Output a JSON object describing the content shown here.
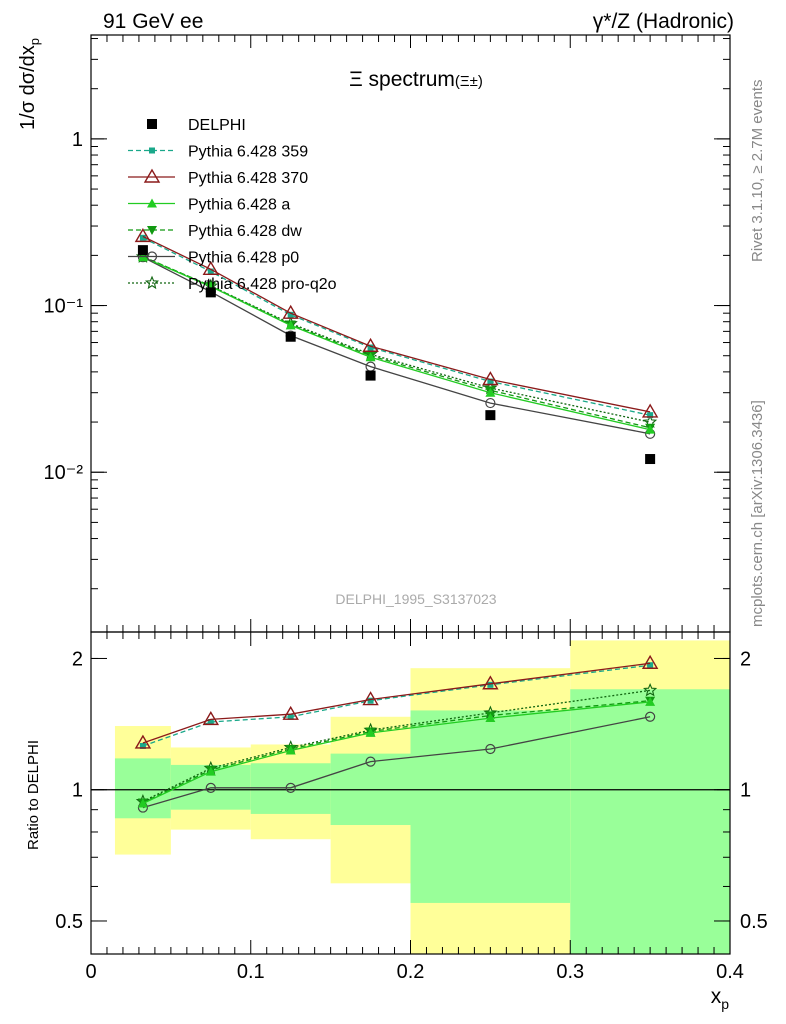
{
  "header": {
    "left": "91 GeV ee",
    "right": "γ*/Z (Hadronic)"
  },
  "side_text": {
    "rivet": "Rivet 3.1.10, ≥ 2.7M events",
    "mcplots": "mcplots.cern.ch [arXiv:1306.3436]"
  },
  "watermark": "DELPHI_1995_S3137023",
  "colors": {
    "delphi": "#000000",
    "p359": "#1aa88a",
    "p370": "#8b1a1a",
    "a": "#22cc22",
    "dw": "#119911",
    "p0": "#444444",
    "proq2o": "#116611",
    "band_yellow": "#ffff99",
    "band_green": "#99ff99"
  },
  "chart_data": [
    {
      "type": "scatter",
      "title": "Ξ spectrum",
      "title_suffix": "(Ξ±)",
      "ylabel": "1/σ dσ/dx_p",
      "ylog": true,
      "ylim": [
        0.0011,
        4.2
      ],
      "xlim": [
        0,
        0.4
      ],
      "yticks": [
        {
          "value": 1,
          "label": "1"
        },
        {
          "value": 0.1,
          "label": "10⁻¹"
        },
        {
          "value": 0.01,
          "label": "10⁻²"
        }
      ],
      "x": [
        0.0325,
        0.075,
        0.125,
        0.175,
        0.25,
        0.35
      ],
      "series": [
        {
          "key": "delphi",
          "name": "DELPHI",
          "marker": "square",
          "line": "none",
          "values": [
            0.215,
            0.12,
            0.065,
            0.038,
            0.022,
            0.012
          ]
        },
        {
          "key": "p359",
          "name": "Pythia 6.428 359",
          "marker": "small-square",
          "line": "dashed",
          "values": [
            0.255,
            0.16,
            0.088,
            0.056,
            0.035,
            0.022
          ]
        },
        {
          "key": "p370",
          "name": "Pythia 6.428 370",
          "marker": "open-triangle",
          "line": "solid",
          "values": [
            0.26,
            0.165,
            0.09,
            0.057,
            0.036,
            0.023
          ]
        },
        {
          "key": "a",
          "name": "Pythia 6.428 a",
          "marker": "triangle",
          "line": "solid",
          "values": [
            0.195,
            0.13,
            0.076,
            0.049,
            0.03,
            0.018
          ]
        },
        {
          "key": "dw",
          "name": "Pythia 6.428 dw",
          "marker": "triangle-down",
          "line": "dashed",
          "values": [
            0.197,
            0.131,
            0.077,
            0.05,
            0.031,
            0.0185
          ]
        },
        {
          "key": "p0",
          "name": "Pythia 6.428 p0",
          "marker": "open-circle",
          "line": "solid",
          "values": [
            0.195,
            0.121,
            0.066,
            0.043,
            0.026,
            0.017
          ]
        },
        {
          "key": "proq2o",
          "name": "Pythia 6.428 pro-q2o",
          "marker": "open-star",
          "line": "dotted",
          "values": [
            0.196,
            0.131,
            0.078,
            0.051,
            0.032,
            0.02
          ]
        }
      ]
    },
    {
      "type": "scatter",
      "ylabel": "Ratio to DELPHI",
      "xlabel": "x_p",
      "ylog": true,
      "ylim": [
        0.42,
        2.3
      ],
      "xlim": [
        0,
        0.4
      ],
      "yticks": [
        {
          "value": 2,
          "label": "2"
        },
        {
          "value": 1,
          "label": "1"
        },
        {
          "value": 0.5,
          "label": "0.5"
        }
      ],
      "xticks": [
        {
          "value": 0,
          "label": "0"
        },
        {
          "value": 0.1,
          "label": "0.1"
        },
        {
          "value": 0.2,
          "label": "0.2"
        },
        {
          "value": 0.3,
          "label": "0.3"
        },
        {
          "value": 0.4,
          "label": "0.4"
        }
      ],
      "bands": [
        {
          "x0": 0.015,
          "x1": 0.05,
          "yellow": [
            0.71,
            1.4
          ],
          "green": [
            0.86,
            1.18
          ]
        },
        {
          "x0": 0.05,
          "x1": 0.1,
          "yellow": [
            0.81,
            1.25
          ],
          "green": [
            0.9,
            1.14
          ]
        },
        {
          "x0": 0.1,
          "x1": 0.15,
          "yellow": [
            0.77,
            1.27
          ],
          "green": [
            0.88,
            1.15
          ]
        },
        {
          "x0": 0.15,
          "x1": 0.2,
          "yellow": [
            0.61,
            1.47
          ],
          "green": [
            0.83,
            1.21
          ]
        },
        {
          "x0": 0.2,
          "x1": 0.3,
          "yellow": [
            0.42,
            1.9
          ],
          "green": [
            0.55,
            1.52
          ]
        },
        {
          "x0": 0.3,
          "x1": 0.4,
          "yellow": [
            0.42,
            2.2
          ],
          "green": [
            0.42,
            1.7
          ]
        }
      ],
      "x": [
        0.0325,
        0.075,
        0.125,
        0.175,
        0.25,
        0.35
      ],
      "series": [
        {
          "key": "p359",
          "values": [
            1.26,
            1.43,
            1.47,
            1.6,
            1.74,
            1.93
          ]
        },
        {
          "key": "p370",
          "values": [
            1.28,
            1.45,
            1.49,
            1.61,
            1.75,
            1.95
          ]
        },
        {
          "key": "a",
          "values": [
            0.93,
            1.1,
            1.23,
            1.35,
            1.46,
            1.59
          ]
        },
        {
          "key": "dw",
          "values": [
            0.935,
            1.11,
            1.24,
            1.36,
            1.48,
            1.6
          ]
        },
        {
          "key": "p0",
          "values": [
            0.91,
            1.01,
            1.01,
            1.16,
            1.24,
            1.47
          ]
        },
        {
          "key": "proq2o",
          "values": [
            0.94,
            1.12,
            1.25,
            1.37,
            1.5,
            1.69
          ]
        }
      ]
    }
  ]
}
